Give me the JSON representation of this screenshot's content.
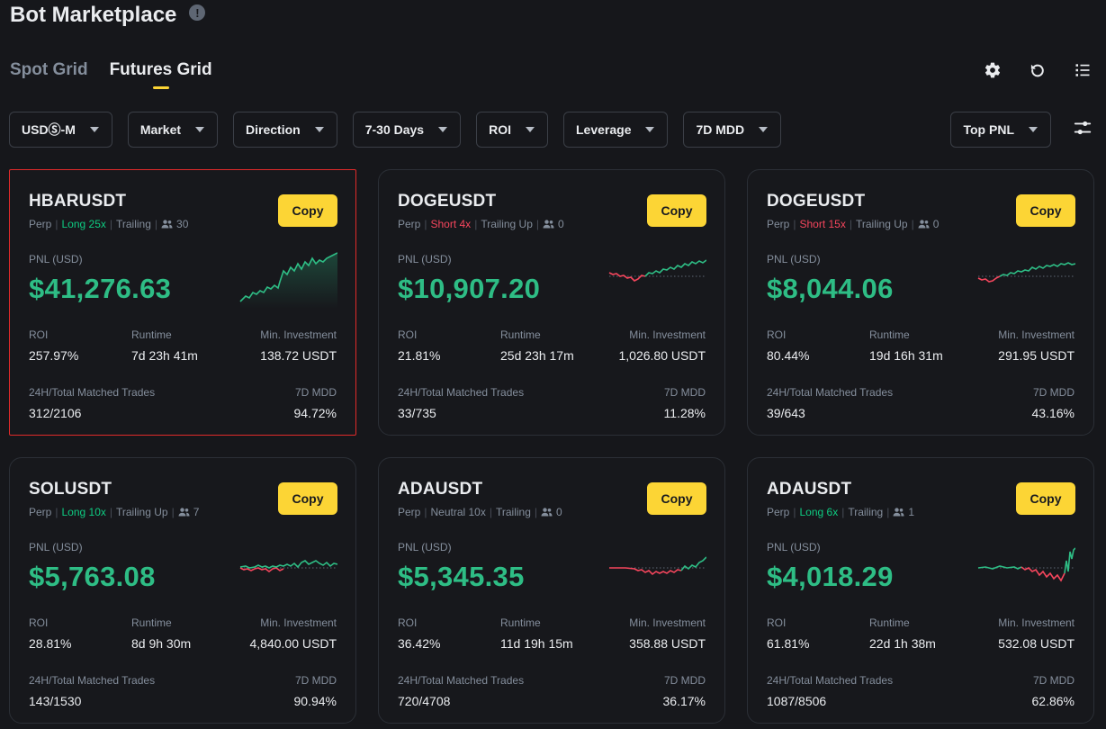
{
  "page": {
    "title": "Bot Marketplace",
    "info_icon": "info-icon"
  },
  "tabs": [
    {
      "label": "Spot Grid",
      "active": false
    },
    {
      "label": "Futures Grid",
      "active": true
    }
  ],
  "actions": [
    "settings-icon",
    "refresh-icon",
    "list-icon"
  ],
  "filters": {
    "items": [
      "USDⓈ-M",
      "Market",
      "Direction",
      "7-30 Days",
      "ROI",
      "Leverage",
      "7D MDD"
    ],
    "sort": "Top PNL"
  },
  "labels": {
    "copy": "Copy",
    "pnl": "PNL (USD)",
    "roi": "ROI",
    "runtime": "Runtime",
    "min_investment": "Min. Investment",
    "trades": "24H/Total Matched Trades",
    "mdd": "7D MDD"
  },
  "colors": {
    "accent": "#fcd535",
    "positive": "#2ebd85",
    "negative": "#f6465d"
  },
  "cards": [
    {
      "symbol": "HBARUSDT",
      "type": "Perp",
      "direction": "Long 25x",
      "dir_class": "long",
      "trailing": "Trailing",
      "copiers": "30",
      "pnl": "$41,276.63",
      "roi": "257.97%",
      "runtime": "7d 23h 41m",
      "min_investment": "138.72 USDT",
      "trades": "312/2106",
      "mdd": "94.72%"
    },
    {
      "symbol": "DOGEUSDT",
      "type": "Perp",
      "direction": "Short 4x",
      "dir_class": "short",
      "trailing": "Trailing Up",
      "copiers": "0",
      "pnl": "$10,907.20",
      "roi": "21.81%",
      "runtime": "25d 23h 17m",
      "min_investment": "1,026.80 USDT",
      "trades": "33/735",
      "mdd": "11.28%"
    },
    {
      "symbol": "DOGEUSDT",
      "type": "Perp",
      "direction": "Short 15x",
      "dir_class": "short",
      "trailing": "Trailing Up",
      "copiers": "0",
      "pnl": "$8,044.06",
      "roi": "80.44%",
      "runtime": "19d 16h 31m",
      "min_investment": "291.95 USDT",
      "trades": "39/643",
      "mdd": "43.16%"
    },
    {
      "symbol": "SOLUSDT",
      "type": "Perp",
      "direction": "Long 10x",
      "dir_class": "long",
      "trailing": "Trailing Up",
      "copiers": "7",
      "pnl": "$5,763.08",
      "roi": "28.81%",
      "runtime": "8d 9h 30m",
      "min_investment": "4,840.00 USDT",
      "trades": "143/1530",
      "mdd": "90.94%"
    },
    {
      "symbol": "ADAUSDT",
      "type": "Perp",
      "direction": "Neutral 10x",
      "dir_class": "neutral",
      "trailing": "Trailing",
      "copiers": "0",
      "pnl": "$5,345.35",
      "roi": "36.42%",
      "runtime": "11d 19h 15m",
      "min_investment": "358.88 USDT",
      "trades": "720/4708",
      "mdd": "36.17%"
    },
    {
      "symbol": "ADAUSDT",
      "type": "Perp",
      "direction": "Long 6x",
      "dir_class": "long",
      "trailing": "Trailing",
      "copiers": "1",
      "pnl": "$4,018.29",
      "roi": "61.81%",
      "runtime": "22d 1h 38m",
      "min_investment": "532.08 USDT",
      "trades": "1087/8506",
      "mdd": "62.86%"
    }
  ]
}
